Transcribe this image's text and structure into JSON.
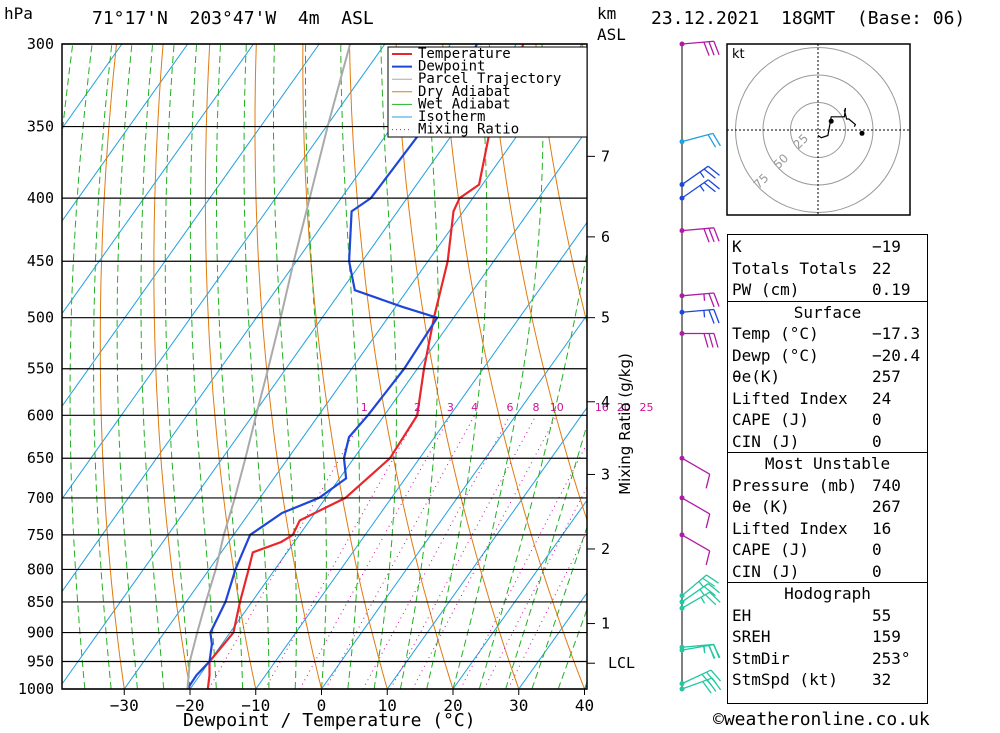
{
  "header": {
    "pressure_unit": "hPa",
    "location": "71°17'N  203°47'W  4m  ASL",
    "height_unit": "km",
    "height_ref": "ASL",
    "datetime": "23.12.2021  18GMT  (Base: 06)"
  },
  "chart_data": {
    "type": "line",
    "title": "71°17'N  203°47'W  4m  ASL",
    "xlabel": "Dewpoint / Temperature (°C)",
    "ylabel": "hPa",
    "x_ticks": [
      -30,
      -20,
      -10,
      0,
      10,
      20,
      30,
      40
    ],
    "x_tick_labels": [
      "−30",
      "−20",
      "−10",
      "0",
      "10",
      "20",
      "30",
      "40"
    ],
    "pressure_levels": [
      300,
      350,
      400,
      450,
      500,
      550,
      600,
      650,
      700,
      750,
      800,
      850,
      900,
      950,
      1000
    ],
    "xlim": [
      -40,
      40
    ],
    "ylim": [
      1000,
      300
    ],
    "legend": [
      "Temperature",
      "Dewpoint",
      "Parcel Trajectory",
      "Dry Adiabat",
      "Wet Adiabat",
      "Isotherm",
      "Mixing Ratio"
    ],
    "colors": {
      "temperature": "#e8262b",
      "dewpoint": "#1e46d8",
      "parcel": "#aaaaaa",
      "dry_adiabat": "#e07a10",
      "wet_adiabat": "#22b022",
      "isotherm": "#20a0e0",
      "mixing_ratio": "#cc1199",
      "wind": "#b01aa8"
    },
    "series": [
      {
        "name": "Temperature",
        "points": [
          [
            1000,
            -17.3
          ],
          [
            975,
            -18.5
          ],
          [
            950,
            -20.0
          ],
          [
            900,
            -19.5
          ],
          [
            850,
            -21.8
          ],
          [
            800,
            -24.0
          ],
          [
            775,
            -25.2
          ],
          [
            760,
            -22.0
          ],
          [
            750,
            -21.0
          ],
          [
            730,
            -21.5
          ],
          [
            700,
            -17.0
          ],
          [
            650,
            -14.5
          ],
          [
            600,
            -15.0
          ],
          [
            550,
            -19.0
          ],
          [
            500,
            -23.0
          ],
          [
            450,
            -27.0
          ],
          [
            410,
            -31.5
          ],
          [
            400,
            -32.0
          ],
          [
            390,
            -30.5
          ],
          [
            350,
            -35.0
          ],
          [
            340,
            -35.0
          ],
          [
            330,
            -35.0
          ],
          [
            300,
            -39.0
          ]
        ]
      },
      {
        "name": "Dewpoint",
        "points": [
          [
            1000,
            -20.4
          ],
          [
            975,
            -20.5
          ],
          [
            950,
            -20.0
          ],
          [
            920,
            -21.5
          ],
          [
            900,
            -23.0
          ],
          [
            850,
            -24.0
          ],
          [
            800,
            -26.0
          ],
          [
            750,
            -27.5
          ],
          [
            720,
            -25.0
          ],
          [
            700,
            -21.0
          ],
          [
            675,
            -19.0
          ],
          [
            650,
            -21.5
          ],
          [
            625,
            -23.0
          ],
          [
            600,
            -22.5
          ],
          [
            550,
            -22.0
          ],
          [
            500,
            -22.5
          ],
          [
            490,
            -29.0
          ],
          [
            475,
            -38.0
          ],
          [
            450,
            -42.0
          ],
          [
            410,
            -47.0
          ],
          [
            400,
            -45.5
          ],
          [
            350,
            -45.0
          ],
          [
            340,
            -44.0
          ],
          [
            300,
            -46.0
          ]
        ]
      },
      {
        "name": "Parcel Trajectory",
        "points": [
          [
            1000,
            -20.4
          ],
          [
            950,
            -23.0
          ],
          [
            900,
            -25.0
          ],
          [
            850,
            -27.0
          ],
          [
            800,
            -29.0
          ],
          [
            750,
            -31.5
          ],
          [
            700,
            -33.8
          ],
          [
            650,
            -36.5
          ],
          [
            600,
            -39.5
          ],
          [
            550,
            -42.7
          ],
          [
            500,
            -46.3
          ],
          [
            450,
            -50.4
          ],
          [
            400,
            -54.8
          ],
          [
            350,
            -59.8
          ],
          [
            300,
            -65.3
          ]
        ]
      }
    ],
    "mixing_ratio_values": [
      1,
      2,
      3,
      4,
      6,
      8,
      10,
      16,
      20,
      25
    ],
    "mixing_ratio_labels": [
      "1",
      "2",
      "3",
      "4",
      "6",
      "8",
      "10",
      "16",
      "20",
      "25"
    ],
    "mixing_ratio_axis_label": "Mixing Ratio (g/kg)",
    "height_km": [
      {
        "label": "7",
        "pressure": 370
      },
      {
        "label": "6",
        "pressure": 430
      },
      {
        "label": "5",
        "pressure": 500
      },
      {
        "label": "4",
        "pressure": 585
      },
      {
        "label": "3",
        "pressure": 670
      },
      {
        "label": "2",
        "pressure": 770
      },
      {
        "label": "1",
        "pressure": 885
      },
      {
        "label": "LCL",
        "pressure": 953
      }
    ],
    "winds": [
      {
        "pressure": 1000,
        "dir": 250,
        "speed": 30,
        "color": "#22c7a0"
      },
      {
        "pressure": 990,
        "dir": 245,
        "speed": 30,
        "color": "#22c7a0"
      },
      {
        "pressure": 930,
        "dir": 260,
        "speed": 25,
        "color": "#22c7a0"
      },
      {
        "pressure": 925,
        "dir": 265,
        "speed": 25,
        "color": "#22c7a0"
      },
      {
        "pressure": 860,
        "dir": 240,
        "speed": 25,
        "color": "#22c7a0"
      },
      {
        "pressure": 850,
        "dir": 235,
        "speed": 25,
        "color": "#22c7a0"
      },
      {
        "pressure": 840,
        "dir": 230,
        "speed": 25,
        "color": "#22c7a0"
      },
      {
        "pressure": 750,
        "dir": 300,
        "speed": 10,
        "color": "#b01aa8"
      },
      {
        "pressure": 700,
        "dir": 300,
        "speed": 10,
        "color": "#b01aa8"
      },
      {
        "pressure": 650,
        "dir": 300,
        "speed": 10,
        "color": "#b01aa8"
      },
      {
        "pressure": 515,
        "dir": 270,
        "speed": 30,
        "color": "#b01aa8"
      },
      {
        "pressure": 495,
        "dir": 265,
        "speed": 25,
        "color": "#1e46d8"
      },
      {
        "pressure": 480,
        "dir": 265,
        "speed": 25,
        "color": "#b01aa8"
      },
      {
        "pressure": 425,
        "dir": 265,
        "speed": 30,
        "color": "#b01aa8"
      },
      {
        "pressure": 400,
        "dir": 235,
        "speed": 25,
        "color": "#1e46d8"
      },
      {
        "pressure": 390,
        "dir": 235,
        "speed": 25,
        "color": "#1e46d8"
      },
      {
        "pressure": 360,
        "dir": 255,
        "speed": 20,
        "color": "#20a0e0"
      },
      {
        "pressure": 300,
        "dir": 265,
        "speed": 30,
        "color": "#b01aa8"
      }
    ]
  },
  "hodograph": {
    "unit": "kt",
    "ring_labels": [
      "25",
      "50",
      "75"
    ],
    "trace": [
      [
        0,
        -5
      ],
      [
        3,
        -7
      ],
      [
        9,
        -5
      ],
      [
        12,
        12
      ],
      [
        24,
        12
      ],
      [
        25,
        20
      ],
      [
        24,
        17
      ],
      [
        24,
        18
      ],
      [
        26,
        10
      ],
      [
        28,
        10
      ],
      [
        34,
        5
      ],
      [
        33,
        3
      ]
    ]
  },
  "indices": {
    "rows": [
      {
        "label": "K",
        "value": "−19"
      },
      {
        "label": "Totals Totals",
        "value": "22"
      },
      {
        "label": "PW (cm)",
        "value": "0.19"
      }
    ],
    "surface": {
      "title": "Surface",
      "rows": [
        {
          "label": "Temp (°C)",
          "value": "−17.3"
        },
        {
          "label": "Dewp (°C)",
          "value": "−20.4"
        },
        {
          "label": "θe(K)",
          "value": "257"
        },
        {
          "label": "Lifted Index",
          "value": "24"
        },
        {
          "label": "CAPE (J)",
          "value": "0"
        },
        {
          "label": "CIN (J)",
          "value": "0"
        }
      ]
    },
    "most_unstable": {
      "title": "Most Unstable",
      "rows": [
        {
          "label": "Pressure (mb)",
          "value": "740"
        },
        {
          "label": "θe (K)",
          "value": "267"
        },
        {
          "label": "Lifted Index",
          "value": "16"
        },
        {
          "label": "CAPE (J)",
          "value": "0"
        },
        {
          "label": "CIN (J)",
          "value": "0"
        }
      ]
    },
    "hodograph": {
      "title": "Hodograph",
      "rows": [
        {
          "label": "EH",
          "value": "55"
        },
        {
          "label": "SREH",
          "value": "159"
        },
        {
          "label": "StmDir",
          "value": "253°"
        },
        {
          "label": "StmSpd (kt)",
          "value": "32"
        }
      ]
    }
  },
  "footer": {
    "copyright": "©weatheronline.co.uk"
  }
}
